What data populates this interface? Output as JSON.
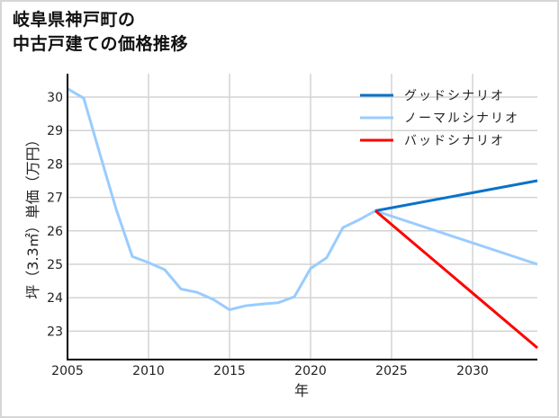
{
  "title_lines": [
    "岐阜県神戸町の",
    "中古戸建ての価格推移"
  ],
  "chart_data": {
    "type": "line",
    "title": "岐阜県神戸町の中古戸建ての価格推移",
    "xlabel": "年",
    "ylabel": "坪（3.3㎡）単価（万円）",
    "xlim": [
      2005,
      2034
    ],
    "ylim": [
      22.15,
      30.7
    ],
    "xticks": [
      2005,
      2010,
      2015,
      2020,
      2025,
      2030
    ],
    "yticks": [
      23,
      24,
      25,
      26,
      27,
      28,
      29,
      30
    ],
    "grid": true,
    "legend_position": "upper right",
    "series": [
      {
        "name": "グッドシナリオ",
        "color": "#0a72c8",
        "x": [
          2024,
          2034
        ],
        "values": [
          26.6,
          27.5
        ]
      },
      {
        "name": "ノーマルシナリオ",
        "color": "#99ccff",
        "x": [
          2005,
          2006,
          2007,
          2008,
          2009,
          2010,
          2011,
          2012,
          2013,
          2014,
          2015,
          2016,
          2017,
          2018,
          2019,
          2020,
          2021,
          2022,
          2023,
          2024,
          2034
        ],
        "values": [
          30.25,
          29.97,
          28.3,
          26.65,
          25.23,
          25.05,
          24.84,
          24.26,
          24.16,
          23.95,
          23.64,
          23.76,
          23.81,
          23.85,
          24.03,
          24.87,
          25.2,
          26.1,
          26.33,
          26.6,
          25.0
        ]
      },
      {
        "name": "バッドシナリオ",
        "color": "#ff0000",
        "x": [
          2024,
          2034
        ],
        "values": [
          26.6,
          22.5
        ]
      }
    ]
  }
}
